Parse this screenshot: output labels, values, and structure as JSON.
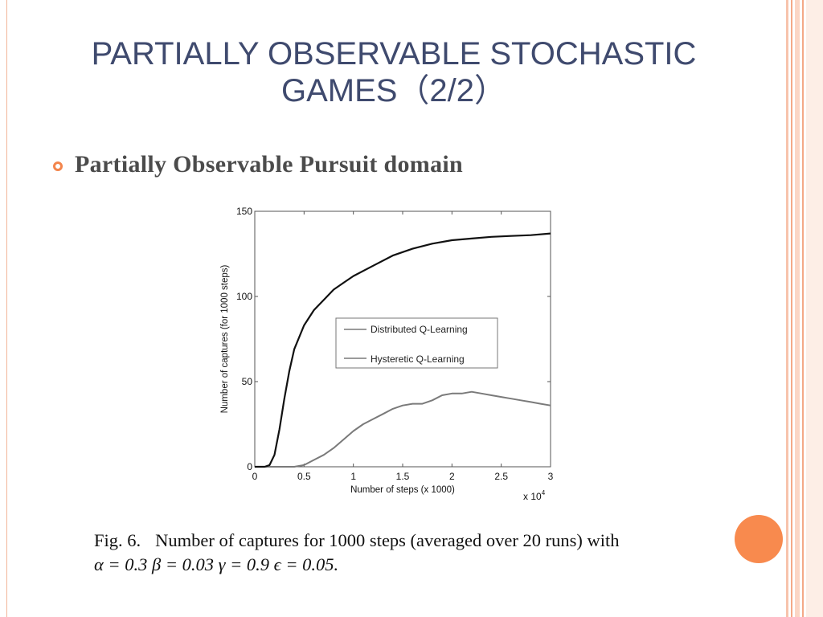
{
  "slide": {
    "title_line1": "PARTIALLY OBSERVABLE STOCHASTIC",
    "title_line2": "GAMES（2/2）",
    "bullet": "Partially Observable Pursuit domain",
    "caption_fig": "Fig. 6.",
    "caption_text": "Number of captures for 1000 steps (averaged over 20 runs) with",
    "caption_params": "α = 0.3 β = 0.03 γ = 0.9 ϵ = 0.05.",
    "colors": {
      "title": "#3f4a6e",
      "accent": "#f88a4e",
      "stripe": "#f4a987"
    }
  },
  "chart_data": {
    "type": "line",
    "xlabel": "Number of steps (x 1000)",
    "ylabel": "Number of captures (for 1000 steps)",
    "x_multiplier_label": "x 10",
    "x_multiplier_exp": "4",
    "xlim": [
      0,
      3
    ],
    "ylim": [
      0,
      150
    ],
    "xticks": [
      "0",
      "0.5",
      "1",
      "1.5",
      "2",
      "2.5",
      "3"
    ],
    "yticks": [
      "0",
      "50",
      "100",
      "150"
    ],
    "legend_position": "center-right",
    "grid": false,
    "series": [
      {
        "name": "Distributed Q-Learning",
        "color": "#7a7a7a",
        "x": [
          0,
          0.4,
          0.5,
          0.6,
          0.7,
          0.8,
          0.9,
          1.0,
          1.1,
          1.2,
          1.3,
          1.4,
          1.5,
          1.6,
          1.7,
          1.8,
          1.9,
          2.0,
          2.1,
          2.2,
          2.3,
          2.4,
          2.5,
          2.6,
          2.7,
          2.8,
          2.9,
          3.0
        ],
        "y": [
          0,
          0,
          1,
          4,
          7,
          11,
          16,
          21,
          25,
          28,
          31,
          34,
          36,
          37,
          37,
          39,
          42,
          43,
          43,
          44,
          43,
          42,
          41,
          40,
          39,
          38,
          37,
          36
        ]
      },
      {
        "name": "Hysteretic Q-Learning",
        "color": "#111111",
        "x": [
          0,
          0.1,
          0.15,
          0.2,
          0.25,
          0.3,
          0.35,
          0.4,
          0.5,
          0.6,
          0.7,
          0.8,
          0.9,
          1.0,
          1.2,
          1.4,
          1.6,
          1.8,
          2.0,
          2.2,
          2.4,
          2.6,
          2.8,
          3.0
        ],
        "y": [
          0,
          0,
          1,
          7,
          22,
          40,
          56,
          69,
          83,
          92,
          98,
          104,
          108,
          112,
          118,
          124,
          128,
          131,
          133,
          134,
          135,
          135.5,
          136,
          137
        ]
      }
    ]
  }
}
